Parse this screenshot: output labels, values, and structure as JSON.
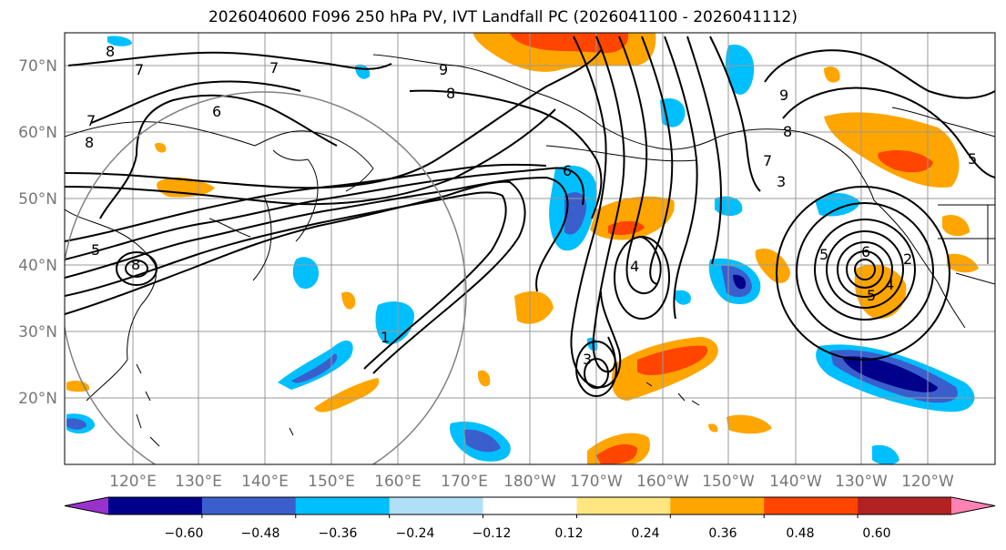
{
  "title": "2026040600 F096 250 hPa PV, IVT Landfall PC (2026041100 - 2026041112)",
  "map": {
    "latitude_labels": [
      "70°N",
      "60°N",
      "50°N",
      "40°N",
      "30°N",
      "20°N"
    ],
    "longitude_labels": [
      "120°E",
      "130°E",
      "140°E",
      "150°E",
      "160°E",
      "170°E",
      "180°W",
      "170°W",
      "160°W",
      "150°W",
      "140°W",
      "130°W",
      "120°W"
    ],
    "contour_labels": [
      "8",
      "7",
      "7",
      "9",
      "8",
      "6",
      "7",
      "8",
      "5",
      "8",
      "9",
      "8",
      "5",
      "7",
      "6",
      "5",
      "3",
      "6",
      "4",
      "2",
      "3",
      "5",
      "4",
      "1"
    ]
  },
  "colorbar": {
    "tick_labels": [
      "−0.60",
      "−0.48",
      "−0.36",
      "−0.24",
      "−0.12",
      "0.12",
      "0.24",
      "0.36",
      "0.48",
      "0.60"
    ],
    "colors": [
      "#9932cc",
      "#00008b",
      "#3a5fcd",
      "#00bfff",
      "#b0e0f8",
      "#ffffff",
      "#ffe680",
      "#ffa500",
      "#ff4500",
      "#b22222",
      "#ff82b4"
    ]
  },
  "colors": {
    "grid": "#999999",
    "contour": "#000000",
    "label_gray": "#777777"
  }
}
